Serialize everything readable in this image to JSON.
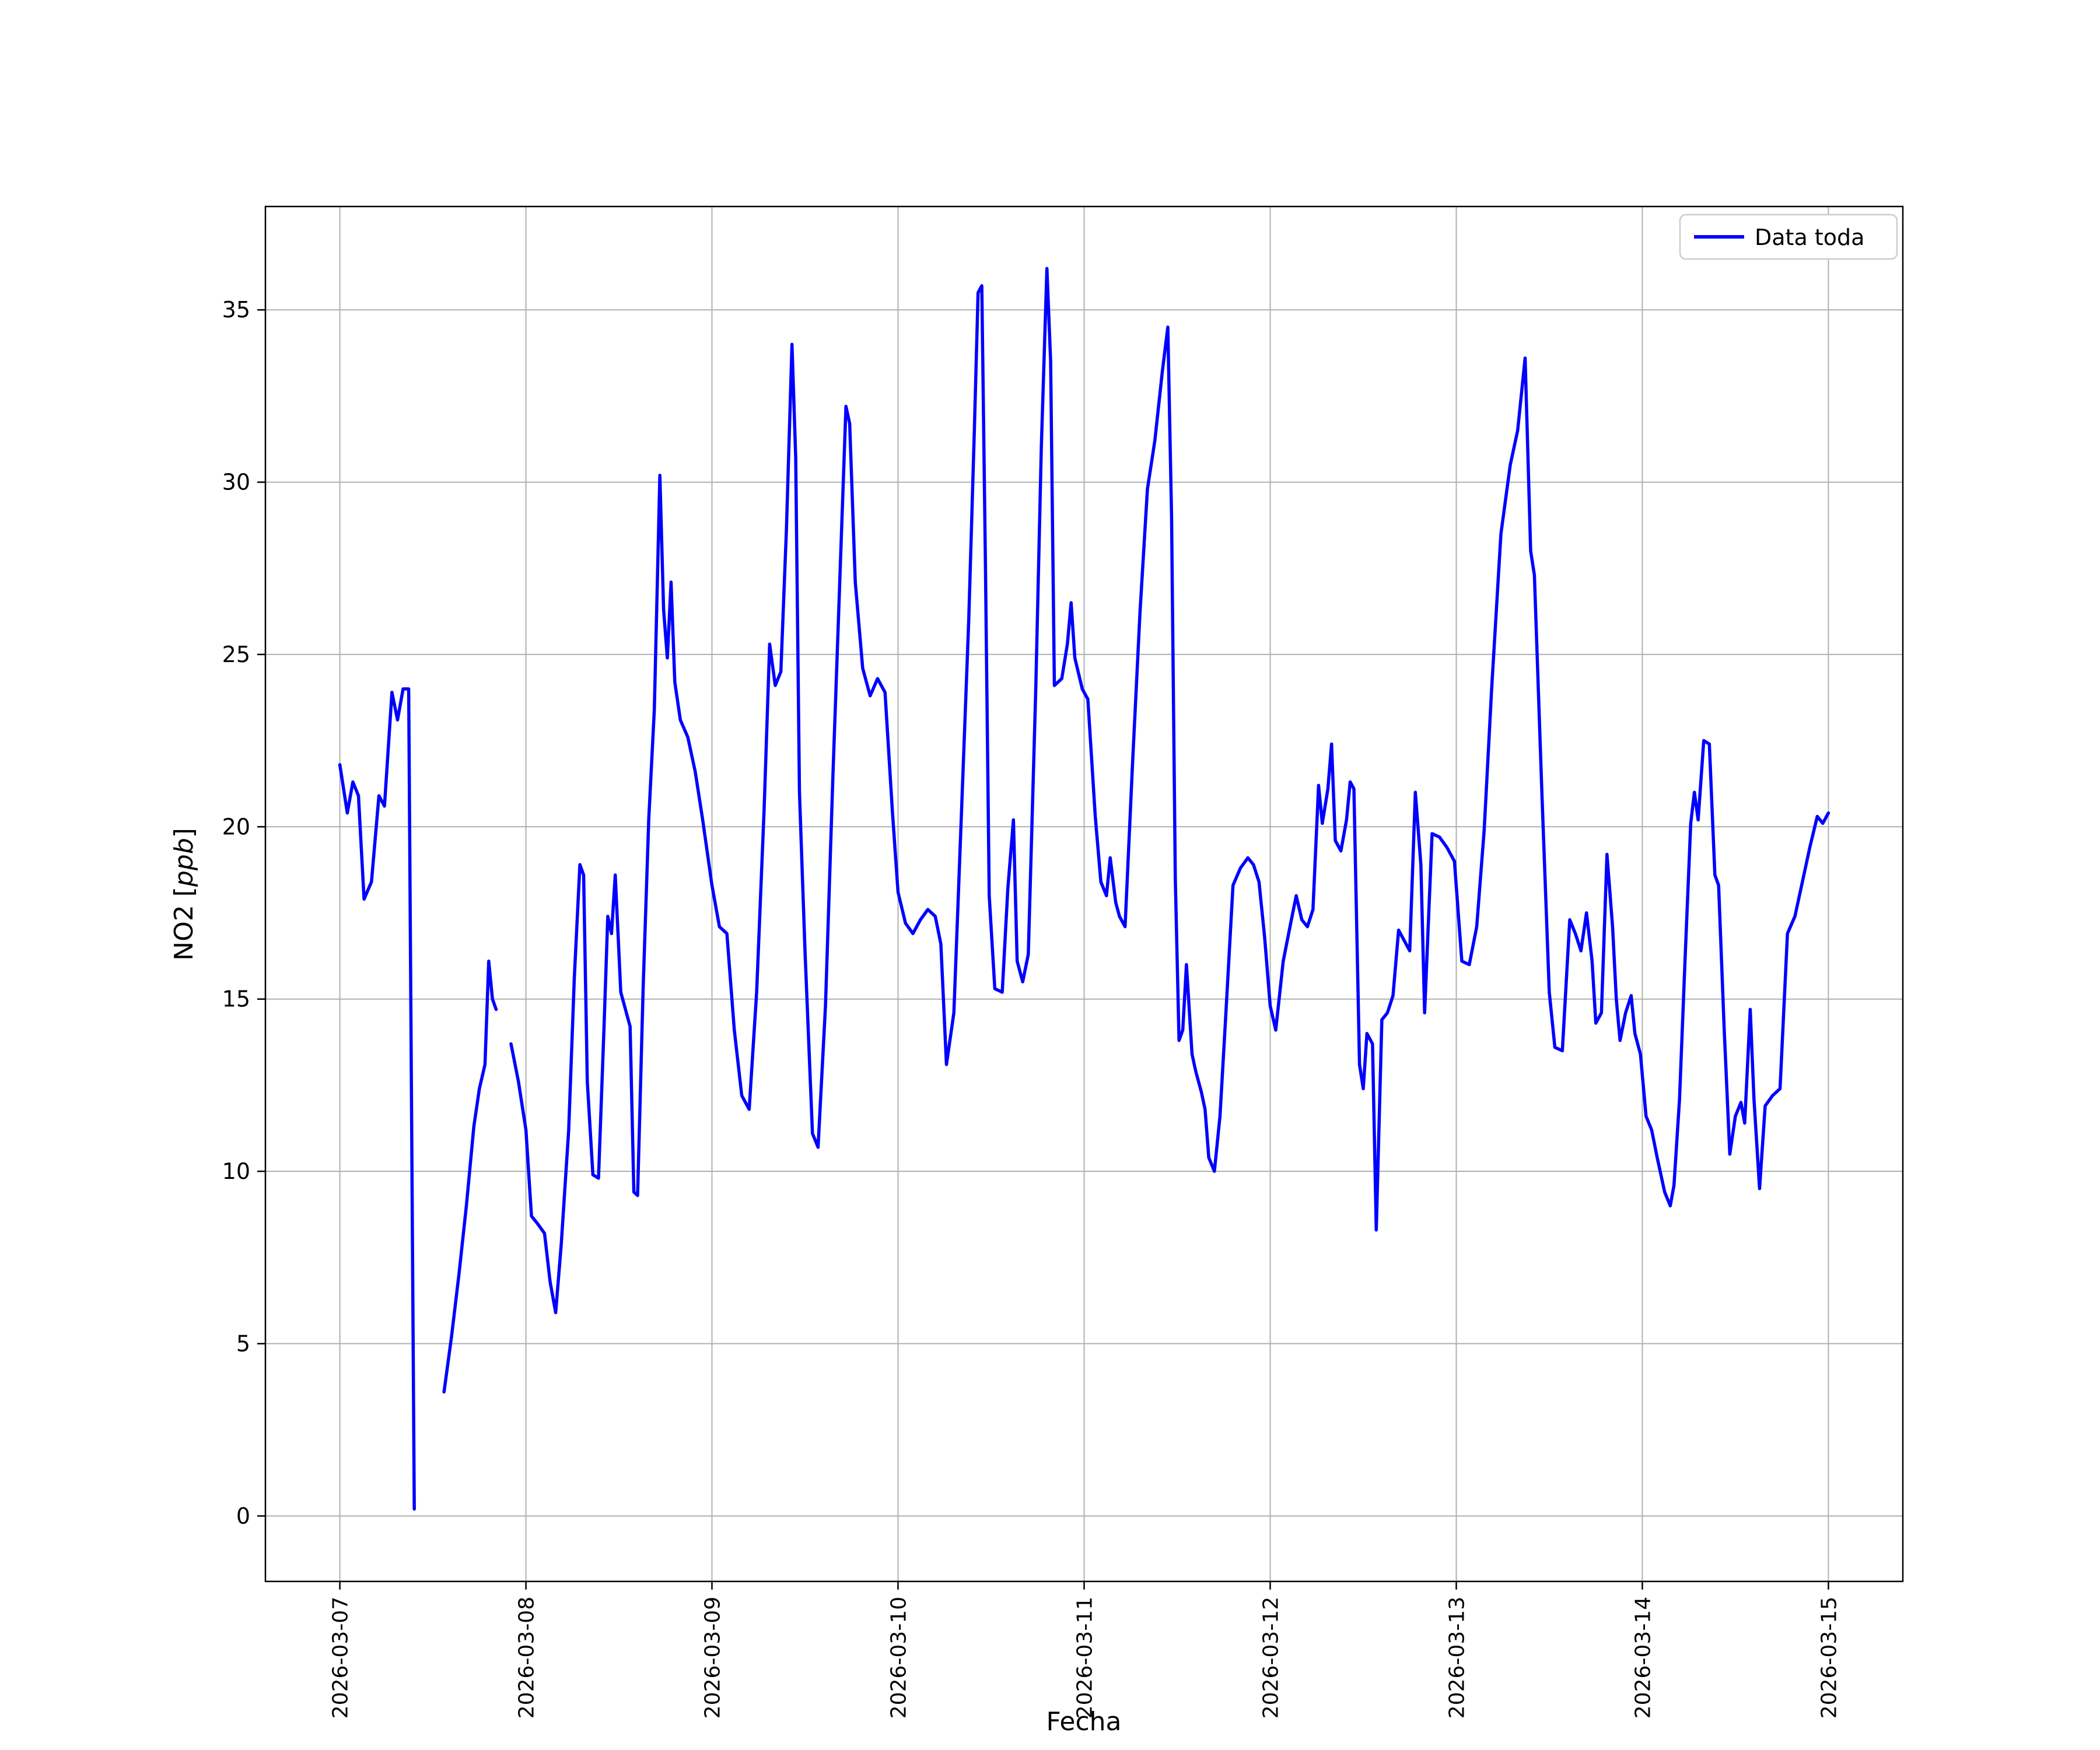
{
  "chart_data": {
    "type": "line",
    "title": "",
    "xlabel": "Fecha",
    "ylabel": "NO2 [ppb]",
    "ylabel_parts": {
      "prefix": "NO2 [",
      "italic": "ppb",
      "suffix": "]"
    },
    "x_tick_labels": [
      "2026-03-07",
      "2026-03-08",
      "2026-03-09",
      "2026-03-10",
      "2026-03-11",
      "2026-03-12",
      "2026-03-13",
      "2026-03-14",
      "2026-03-15"
    ],
    "x_ticks_days": [
      0,
      1,
      2,
      3,
      4,
      5,
      6,
      7,
      8
    ],
    "y_ticks": [
      0,
      5,
      10,
      15,
      20,
      25,
      30,
      35
    ],
    "xlim_days": [
      -0.4,
      8.4
    ],
    "ylim": [
      -1.9,
      38.0
    ],
    "grid": true,
    "grid_color": "#b0b0b0",
    "axes_color": "#000000",
    "background": "#ffffff",
    "legend": {
      "label": "Data toda",
      "position": "upper right"
    },
    "series": [
      {
        "name": "Data toda",
        "color": "#0000ff",
        "x_unit": "days since 2026-03-07",
        "y_unit": "ppb",
        "points": [
          [
            0.0,
            21.8
          ],
          [
            0.04,
            20.4
          ],
          [
            0.07,
            21.3
          ],
          [
            0.1,
            20.9
          ],
          [
            0.13,
            17.9
          ],
          [
            0.17,
            18.4
          ],
          [
            0.21,
            20.9
          ],
          [
            0.24,
            20.6
          ],
          [
            0.28,
            23.9
          ],
          [
            0.31,
            23.1
          ],
          [
            0.34,
            24.0
          ],
          [
            0.37,
            24.0
          ],
          [
            0.4,
            0.2
          ],
          null,
          [
            0.56,
            3.6
          ],
          [
            0.6,
            5.2
          ],
          [
            0.64,
            7.0
          ],
          [
            0.68,
            9.0
          ],
          [
            0.72,
            11.3
          ],
          [
            0.75,
            12.4
          ],
          [
            0.78,
            13.1
          ],
          [
            0.8,
            16.1
          ],
          [
            0.82,
            15.0
          ],
          [
            0.84,
            14.7
          ],
          null,
          [
            0.92,
            13.7
          ],
          [
            0.96,
            12.6
          ],
          [
            1.0,
            11.2
          ],
          [
            1.03,
            8.7
          ],
          [
            1.06,
            8.5
          ],
          [
            1.1,
            8.2
          ],
          [
            1.13,
            6.8
          ],
          [
            1.16,
            5.9
          ],
          [
            1.19,
            7.9
          ],
          [
            1.23,
            11.2
          ],
          [
            1.26,
            15.6
          ],
          [
            1.29,
            18.9
          ],
          [
            1.31,
            18.6
          ],
          [
            1.33,
            12.6
          ],
          [
            1.36,
            9.9
          ],
          [
            1.39,
            9.8
          ],
          [
            1.42,
            14.2
          ],
          [
            1.44,
            17.4
          ],
          [
            1.46,
            16.9
          ],
          [
            1.48,
            18.6
          ],
          [
            1.51,
            15.2
          ],
          [
            1.54,
            14.6
          ],
          [
            1.56,
            14.2
          ],
          [
            1.58,
            9.4
          ],
          [
            1.6,
            9.3
          ],
          [
            1.63,
            15.3
          ],
          [
            1.66,
            20.2
          ],
          [
            1.69,
            23.4
          ],
          [
            1.72,
            30.2
          ],
          [
            1.74,
            26.3
          ],
          [
            1.76,
            24.9
          ],
          [
            1.78,
            27.1
          ],
          [
            1.8,
            24.2
          ],
          [
            1.83,
            23.1
          ],
          [
            1.87,
            22.6
          ],
          [
            1.91,
            21.6
          ],
          [
            1.95,
            20.2
          ],
          [
            2.0,
            18.3
          ],
          [
            2.04,
            17.1
          ],
          [
            2.08,
            16.9
          ],
          [
            2.12,
            14.1
          ],
          [
            2.16,
            12.2
          ],
          [
            2.2,
            11.8
          ],
          [
            2.24,
            15.2
          ],
          [
            2.28,
            20.5
          ],
          [
            2.31,
            25.3
          ],
          [
            2.34,
            24.1
          ],
          [
            2.37,
            24.5
          ],
          [
            2.4,
            28.6
          ],
          [
            2.43,
            34.0
          ],
          [
            2.45,
            30.7
          ],
          [
            2.47,
            21.0
          ],
          [
            2.5,
            16.4
          ],
          [
            2.54,
            11.1
          ],
          [
            2.57,
            10.7
          ],
          [
            2.61,
            14.8
          ],
          [
            2.65,
            21.5
          ],
          [
            2.69,
            27.6
          ],
          [
            2.72,
            32.2
          ],
          [
            2.74,
            31.7
          ],
          [
            2.77,
            27.1
          ],
          [
            2.81,
            24.6
          ],
          [
            2.85,
            23.8
          ],
          [
            2.89,
            24.3
          ],
          [
            2.93,
            23.9
          ],
          [
            2.97,
            20.4
          ],
          [
            3.0,
            18.1
          ],
          [
            3.04,
            17.2
          ],
          [
            3.08,
            16.9
          ],
          [
            3.12,
            17.3
          ],
          [
            3.16,
            17.6
          ],
          [
            3.2,
            17.4
          ],
          [
            3.23,
            16.6
          ],
          [
            3.26,
            13.1
          ],
          [
            3.3,
            14.6
          ],
          [
            3.34,
            20.3
          ],
          [
            3.38,
            26.0
          ],
          [
            3.41,
            31.5
          ],
          [
            3.43,
            35.5
          ],
          [
            3.45,
            35.7
          ],
          [
            3.47,
            27.5
          ],
          [
            3.49,
            18.0
          ],
          [
            3.52,
            15.3
          ],
          [
            3.56,
            15.2
          ],
          [
            3.59,
            18.2
          ],
          [
            3.62,
            20.2
          ],
          [
            3.64,
            16.1
          ],
          [
            3.67,
            15.5
          ],
          [
            3.7,
            16.3
          ],
          [
            3.74,
            24.0
          ],
          [
            3.77,
            31.0
          ],
          [
            3.8,
            36.2
          ],
          [
            3.82,
            33.5
          ],
          [
            3.84,
            24.1
          ],
          [
            3.88,
            24.3
          ],
          [
            3.91,
            25.3
          ],
          [
            3.93,
            26.5
          ],
          [
            3.95,
            24.9
          ],
          [
            3.99,
            24.0
          ],
          [
            4.02,
            23.7
          ],
          [
            4.06,
            20.3
          ],
          [
            4.09,
            18.4
          ],
          [
            4.12,
            18.0
          ],
          [
            4.14,
            19.1
          ],
          [
            4.17,
            17.8
          ],
          [
            4.19,
            17.4
          ],
          [
            4.22,
            17.1
          ],
          [
            4.26,
            21.8
          ],
          [
            4.3,
            26.2
          ],
          [
            4.34,
            29.8
          ],
          [
            4.38,
            31.2
          ],
          [
            4.42,
            33.2
          ],
          [
            4.45,
            34.5
          ],
          [
            4.47,
            29.0
          ],
          [
            4.49,
            18.5
          ],
          [
            4.51,
            13.8
          ],
          [
            4.53,
            14.1
          ],
          [
            4.55,
            16.0
          ],
          [
            4.58,
            13.4
          ],
          [
            4.6,
            12.9
          ],
          [
            4.63,
            12.3
          ],
          [
            4.65,
            11.8
          ],
          [
            4.67,
            10.4
          ],
          [
            4.7,
            10.0
          ],
          [
            4.73,
            11.6
          ],
          [
            4.76,
            14.4
          ],
          [
            4.8,
            18.3
          ],
          [
            4.84,
            18.8
          ],
          [
            4.88,
            19.1
          ],
          [
            4.91,
            18.9
          ],
          [
            4.94,
            18.4
          ],
          [
            4.97,
            16.8
          ],
          [
            5.0,
            14.8
          ],
          [
            5.03,
            14.1
          ],
          [
            5.07,
            16.1
          ],
          [
            5.11,
            17.2
          ],
          [
            5.14,
            18.0
          ],
          [
            5.17,
            17.3
          ],
          [
            5.2,
            17.1
          ],
          [
            5.23,
            17.6
          ],
          [
            5.26,
            21.2
          ],
          [
            5.28,
            20.1
          ],
          [
            5.31,
            21.1
          ],
          [
            5.33,
            22.4
          ],
          [
            5.35,
            19.6
          ],
          [
            5.38,
            19.3
          ],
          [
            5.41,
            20.2
          ],
          [
            5.43,
            21.3
          ],
          [
            5.45,
            21.1
          ],
          [
            5.48,
            13.1
          ],
          [
            5.5,
            12.4
          ],
          [
            5.52,
            14.0
          ],
          [
            5.55,
            13.7
          ],
          [
            5.57,
            8.3
          ],
          [
            5.6,
            14.4
          ],
          [
            5.63,
            14.6
          ],
          [
            5.66,
            15.1
          ],
          [
            5.69,
            17.0
          ],
          [
            5.72,
            16.7
          ],
          [
            5.75,
            16.4
          ],
          [
            5.78,
            21.0
          ],
          [
            5.81,
            18.9
          ],
          [
            5.83,
            14.6
          ],
          [
            5.87,
            19.8
          ],
          [
            5.91,
            19.7
          ],
          [
            5.95,
            19.4
          ],
          [
            5.99,
            19.0
          ],
          [
            6.03,
            16.1
          ],
          [
            6.07,
            16.0
          ],
          [
            6.11,
            17.1
          ],
          [
            6.15,
            19.9
          ],
          [
            6.19,
            24.0
          ],
          [
            6.24,
            28.5
          ],
          [
            6.29,
            30.5
          ],
          [
            6.33,
            31.5
          ],
          [
            6.37,
            33.6
          ],
          [
            6.4,
            28.0
          ],
          [
            6.42,
            27.3
          ],
          [
            6.46,
            21.0
          ],
          [
            6.5,
            15.2
          ],
          [
            6.53,
            13.6
          ],
          [
            6.57,
            13.5
          ],
          [
            6.61,
            17.3
          ],
          [
            6.64,
            16.9
          ],
          [
            6.67,
            16.4
          ],
          [
            6.7,
            17.5
          ],
          [
            6.73,
            16.1
          ],
          [
            6.75,
            14.3
          ],
          [
            6.78,
            14.6
          ],
          [
            6.81,
            19.2
          ],
          [
            6.84,
            17.1
          ],
          [
            6.86,
            15.0
          ],
          [
            6.88,
            13.8
          ],
          [
            6.91,
            14.6
          ],
          [
            6.94,
            15.1
          ],
          [
            6.96,
            14.0
          ],
          [
            6.99,
            13.4
          ],
          [
            7.02,
            11.6
          ],
          [
            7.05,
            11.2
          ],
          [
            7.08,
            10.4
          ],
          [
            7.12,
            9.4
          ],
          [
            7.15,
            9.0
          ],
          [
            7.17,
            9.6
          ],
          [
            7.2,
            12.1
          ],
          [
            7.23,
            16.2
          ],
          [
            7.26,
            20.1
          ],
          [
            7.28,
            21.0
          ],
          [
            7.3,
            20.2
          ],
          [
            7.33,
            22.5
          ],
          [
            7.36,
            22.4
          ],
          [
            7.39,
            18.6
          ],
          [
            7.41,
            18.3
          ],
          [
            7.44,
            14.1
          ],
          [
            7.47,
            10.5
          ],
          [
            7.5,
            11.6
          ],
          [
            7.53,
            12.0
          ],
          [
            7.55,
            11.4
          ],
          [
            7.58,
            14.7
          ],
          [
            7.6,
            12.1
          ],
          [
            7.63,
            9.5
          ],
          [
            7.66,
            11.9
          ],
          [
            7.7,
            12.2
          ],
          [
            7.74,
            12.4
          ],
          [
            7.78,
            16.9
          ],
          [
            7.82,
            17.4
          ],
          [
            7.86,
            18.4
          ],
          [
            7.9,
            19.4
          ],
          [
            7.94,
            20.3
          ],
          [
            7.97,
            20.1
          ],
          [
            8.0,
            20.4
          ]
        ]
      }
    ]
  }
}
